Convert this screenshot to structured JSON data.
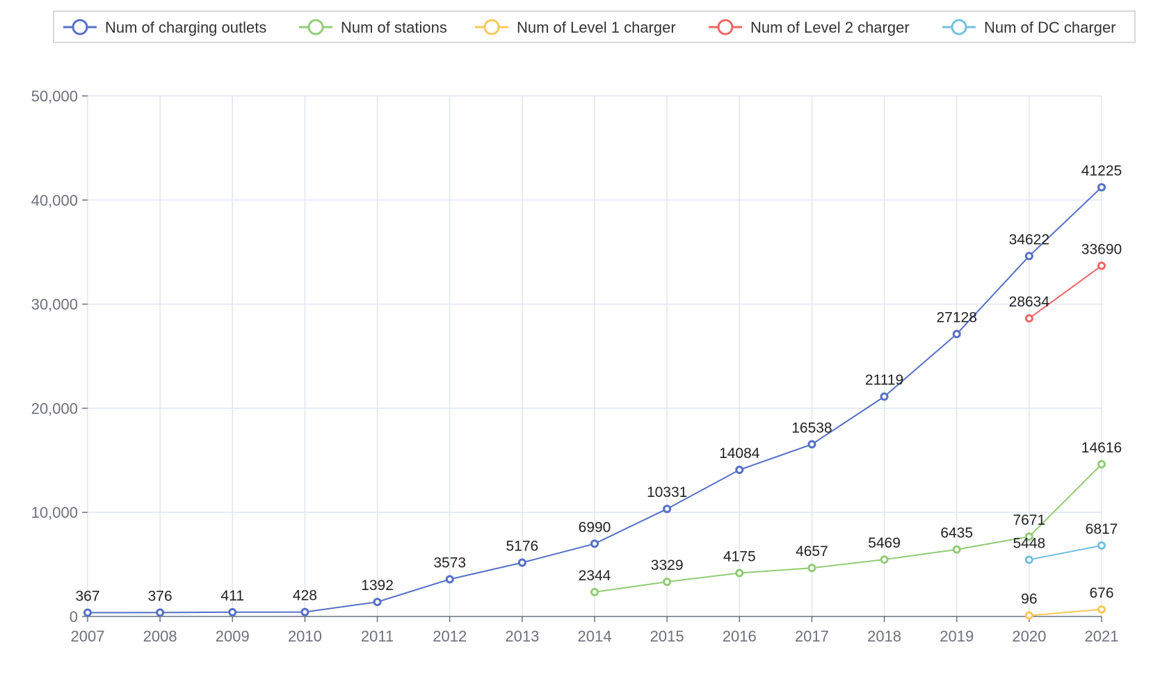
{
  "chart_data": {
    "type": "line",
    "title": "",
    "xlabel": "",
    "ylabel": "",
    "categories": [
      "2007",
      "2008",
      "2009",
      "2010",
      "2011",
      "2012",
      "2013",
      "2014",
      "2015",
      "2016",
      "2017",
      "2018",
      "2019",
      "2020",
      "2021"
    ],
    "ylim": [
      0,
      50000
    ],
    "yticks": [
      0,
      10000,
      20000,
      30000,
      40000,
      50000
    ],
    "ytick_labels": [
      "0",
      "10,000",
      "20,000",
      "30,000",
      "40,000",
      "50,000"
    ],
    "grid": true,
    "legend_position": "top",
    "series": [
      {
        "name": "Num of charging outlets",
        "color": "#5470c6",
        "values": [
          367,
          376,
          411,
          428,
          1392,
          3573,
          5176,
          6990,
          10331,
          14084,
          16538,
          21119,
          27128,
          34622,
          41225
        ]
      },
      {
        "name": "Num of stations",
        "color": "#91cc75",
        "values": [
          null,
          null,
          null,
          null,
          null,
          null,
          null,
          2344,
          3329,
          4175,
          4657,
          5469,
          6435,
          7671,
          14616
        ]
      },
      {
        "name": "Num of Level 1 charger",
        "color": "#fac858",
        "values": [
          null,
          null,
          null,
          null,
          null,
          null,
          null,
          null,
          null,
          null,
          null,
          null,
          null,
          96,
          676
        ]
      },
      {
        "name": "Num of Level 2 charger",
        "color": "#ee6666",
        "values": [
          null,
          null,
          null,
          null,
          null,
          null,
          null,
          null,
          null,
          null,
          null,
          null,
          null,
          28634,
          33690
        ]
      },
      {
        "name": "Num of DC charger",
        "color": "#73c0de",
        "values": [
          null,
          null,
          null,
          null,
          null,
          null,
          null,
          null,
          null,
          null,
          null,
          null,
          null,
          5448,
          6817
        ]
      }
    ]
  },
  "colors": {
    "grid": "#e0e6f1",
    "axis": "#6e7079",
    "label": "#222222",
    "legend_border": "#cccccc"
  }
}
